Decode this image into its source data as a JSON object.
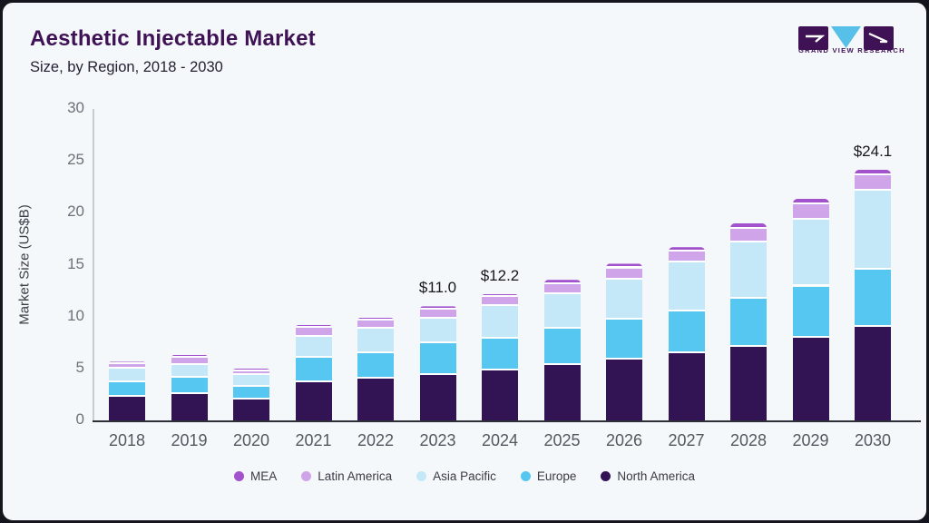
{
  "header": {
    "title": "Aesthetic Injectable Market",
    "subtitle": "Size, by Region, 2018 - 2030"
  },
  "logo": {
    "text": "GRAND VIEW RESEARCH",
    "block_color": "#3e1254",
    "triangle_color": "#56c0e8"
  },
  "chart_data": {
    "type": "bar",
    "stacked": true,
    "title": "Aesthetic Injectable Market Size, by Region, 2018 - 2030",
    "ylabel": "Market Size (US$B)",
    "xlabel": "",
    "ylim": [
      0,
      30
    ],
    "yticks": [
      0,
      5,
      10,
      15,
      20,
      25,
      30
    ],
    "grid": false,
    "legend_position": "bottom",
    "categories": [
      "2018",
      "2019",
      "2020",
      "2021",
      "2022",
      "2023",
      "2024",
      "2025",
      "2026",
      "2027",
      "2028",
      "2029",
      "2030"
    ],
    "series": [
      {
        "name": "North America",
        "color": "#321353",
        "values": [
          2.3,
          2.5,
          2.0,
          3.7,
          4.0,
          4.4,
          4.8,
          5.3,
          5.85,
          6.5,
          7.1,
          7.95,
          9.0
        ]
      },
      {
        "name": "Europe",
        "color": "#55c7f1",
        "values": [
          1.4,
          1.65,
          1.2,
          2.35,
          2.5,
          3.0,
          3.1,
          3.5,
          3.85,
          4.0,
          4.65,
          4.95,
          5.5
        ]
      },
      {
        "name": "Asia Pacific",
        "color": "#c4e8f8",
        "values": [
          1.25,
          1.2,
          1.2,
          2.0,
          2.35,
          2.4,
          3.1,
          3.4,
          3.9,
          4.7,
          5.4,
          6.45,
          7.6
        ]
      },
      {
        "name": "Latin America",
        "color": "#cfa4e8",
        "values": [
          0.45,
          0.7,
          0.35,
          0.85,
          0.75,
          0.9,
          0.9,
          0.95,
          1.05,
          1.05,
          1.3,
          1.5,
          1.55
        ]
      },
      {
        "name": "MEA",
        "color": "#a152cc",
        "values": [
          0.25,
          0.25,
          0.25,
          0.3,
          0.3,
          0.3,
          0.3,
          0.4,
          0.45,
          0.45,
          0.5,
          0.45,
          0.45
        ]
      }
    ],
    "totals": [
      5.65,
      6.3,
      5.0,
      9.2,
      9.9,
      11.0,
      12.2,
      13.55,
      15.1,
      16.7,
      18.95,
      21.3,
      24.1
    ],
    "annotations": [
      {
        "category": "2023",
        "label": "$11.0"
      },
      {
        "category": "2024",
        "label": "$12.2"
      },
      {
        "category": "2030",
        "label": "$24.1"
      }
    ],
    "legend": [
      {
        "label": "MEA",
        "color": "#a152cc"
      },
      {
        "label": "Latin America",
        "color": "#cfa4e8"
      },
      {
        "label": "Asia Pacific",
        "color": "#c4e8f8"
      },
      {
        "label": "Europe",
        "color": "#55c7f1"
      },
      {
        "label": "North America",
        "color": "#321353"
      }
    ]
  }
}
